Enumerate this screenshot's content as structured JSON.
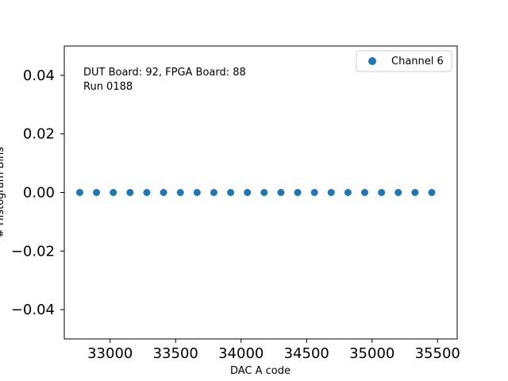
{
  "chart_data": {
    "type": "scatter",
    "xlabel": "DAC A code",
    "ylabel": "# Histogram Bins",
    "xlim": [
      32650,
      35650
    ],
    "ylim": [
      -0.05,
      0.05
    ],
    "xticks": [
      33000,
      33500,
      34000,
      34500,
      35000,
      35500
    ],
    "xtick_labels": [
      "33000",
      "33500",
      "34000",
      "34500",
      "35000",
      "35500"
    ],
    "yticks": [
      0.04,
      0.02,
      0.0,
      -0.02,
      -0.04
    ],
    "ytick_labels": [
      "0.04",
      "0.02",
      "0.00",
      "−0.02",
      "−0.04"
    ],
    "annotations": [
      "DUT Board: 92, FPGA Board: 88",
      "Run 0188"
    ],
    "legend_position": "top-right",
    "grid": false,
    "series": [
      {
        "name": "Channel 6",
        "color": "#1f77b4",
        "x": [
          32768,
          32896,
          33024,
          33152,
          33280,
          33408,
          33536,
          33664,
          33792,
          33920,
          34048,
          34176,
          34304,
          34432,
          34560,
          34688,
          34816,
          34944,
          35072,
          35200,
          35328,
          35456
        ],
        "y": [
          0,
          0,
          0,
          0,
          0,
          0,
          0,
          0,
          0,
          0,
          0,
          0,
          0,
          0,
          0,
          0,
          0,
          0,
          0,
          0,
          0,
          0
        ]
      }
    ]
  }
}
